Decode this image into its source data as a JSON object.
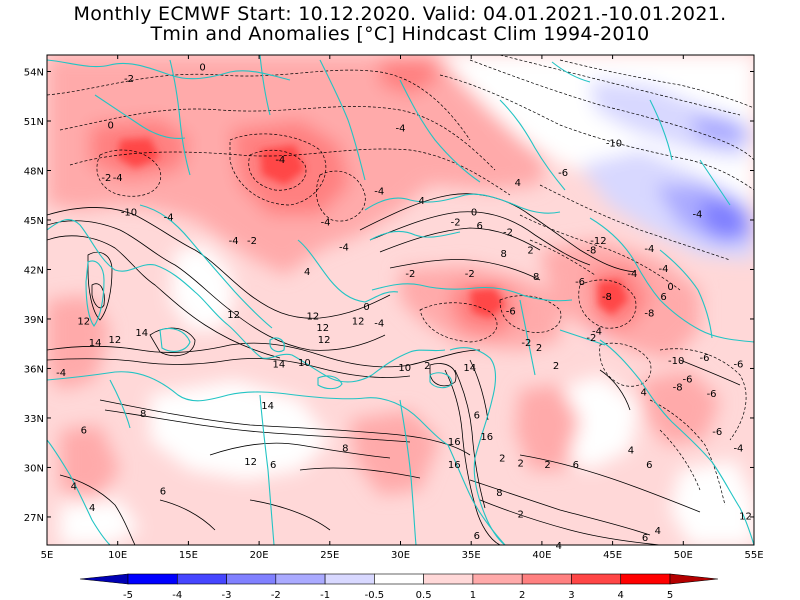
{
  "header": {
    "line1": "Monthly ECMWF Start: 10.12.2020. Valid: 04.01.2021.-10.01.2021.",
    "line2": "Tmin and Anomalies [°C] Hindcast Clim 1994-2010"
  },
  "map": {
    "lon_ticks": [
      "5E",
      "10E",
      "15E",
      "20E",
      "25E",
      "30E",
      "35E",
      "40E",
      "45E",
      "50E",
      "55E"
    ],
    "lat_ticks": [
      "54N",
      "51N",
      "48N",
      "45N",
      "42N",
      "39N",
      "36N",
      "33N",
      "30N",
      "27N"
    ],
    "colors": {
      "coastline": "#22c4c4",
      "contour": "#000000",
      "neutral": "#ffffff"
    }
  },
  "colorbar": {
    "labels": [
      "-5",
      "-4",
      "-3",
      "-2",
      "-1",
      "-0.5",
      "0.5",
      "1",
      "2",
      "3",
      "4",
      "5"
    ],
    "colors": [
      "#0000b4",
      "#0000ff",
      "#4646ff",
      "#8080ff",
      "#aaaaff",
      "#d8d8ff",
      "#ffffff",
      "#ffd8d8",
      "#ffaaaa",
      "#ff8080",
      "#ff4646",
      "#ff0000",
      "#b40000"
    ]
  },
  "contour_labels": [
    {
      "t": "0",
      "lon": 16,
      "lat": 54.3
    },
    {
      "t": "-2",
      "lon": 10.8,
      "lat": 53.6
    },
    {
      "t": "0",
      "lon": 9.5,
      "lat": 50.8
    },
    {
      "t": "-4",
      "lon": 10,
      "lat": 47.6
    },
    {
      "t": "-2",
      "lon": 9.2,
      "lat": 47.6
    },
    {
      "t": "-10",
      "lon": 10.8,
      "lat": 45.5
    },
    {
      "t": "-4",
      "lon": 13.6,
      "lat": 45.2
    },
    {
      "t": "-4",
      "lon": 18.2,
      "lat": 43.8
    },
    {
      "t": "-2",
      "lon": 19.5,
      "lat": 43.8
    },
    {
      "t": "-4",
      "lon": 24.7,
      "lat": 44.9
    },
    {
      "t": "-4",
      "lon": 26,
      "lat": 43.4
    },
    {
      "t": "-4",
      "lon": 21.5,
      "lat": 48.7
    },
    {
      "t": "-4",
      "lon": 30,
      "lat": 50.6
    },
    {
      "t": "-4",
      "lon": 28.5,
      "lat": 46.8
    },
    {
      "t": "4",
      "lon": 23.4,
      "lat": 41.9
    },
    {
      "t": "4",
      "lon": 31.5,
      "lat": 46.2
    },
    {
      "t": "4",
      "lon": 38.3,
      "lat": 47.3
    },
    {
      "t": "-2",
      "lon": 33.9,
      "lat": 44.9
    },
    {
      "t": "0",
      "lon": 35.2,
      "lat": 45.5
    },
    {
      "t": "6",
      "lon": 35.6,
      "lat": 44.7
    },
    {
      "t": "-2",
      "lon": 37.6,
      "lat": 44.3
    },
    {
      "t": "-6",
      "lon": 41.5,
      "lat": 47.9
    },
    {
      "t": "-10",
      "lon": 45.1,
      "lat": 49.7
    },
    {
      "t": "-12",
      "lon": 44,
      "lat": 43.8
    },
    {
      "t": "-8",
      "lon": 43.5,
      "lat": 43.2
    },
    {
      "t": "-4",
      "lon": 47.6,
      "lat": 43.3
    },
    {
      "t": "-4",
      "lon": 51,
      "lat": 45.4
    },
    {
      "t": "8",
      "lon": 37.3,
      "lat": 43
    },
    {
      "t": "2",
      "lon": 39.2,
      "lat": 43.2
    },
    {
      "t": "8",
      "lon": 39.6,
      "lat": 41.6
    },
    {
      "t": "-2",
      "lon": 30.7,
      "lat": 41.8
    },
    {
      "t": "-2",
      "lon": 34.9,
      "lat": 41.8
    },
    {
      "t": "-6",
      "lon": 42.7,
      "lat": 41.3
    },
    {
      "t": "-4",
      "lon": 46.4,
      "lat": 41.8
    },
    {
      "t": "-4",
      "lon": 48.6,
      "lat": 42.1
    },
    {
      "t": "0",
      "lon": 49.1,
      "lat": 41
    },
    {
      "t": "6",
      "lon": 48.6,
      "lat": 40.4
    },
    {
      "t": "-8",
      "lon": 44.6,
      "lat": 40.4
    },
    {
      "t": "-8",
      "lon": 47.6,
      "lat": 39.4
    },
    {
      "t": "-4",
      "lon": 43.9,
      "lat": 38.3
    },
    {
      "t": "-2",
      "lon": 43.5,
      "lat": 37.9
    },
    {
      "t": "-6",
      "lon": 37.8,
      "lat": 39.5
    },
    {
      "t": "-4",
      "lon": 28.5,
      "lat": 38.8
    },
    {
      "t": "0",
      "lon": 27.6,
      "lat": 39.8
    },
    {
      "t": "12",
      "lon": 18.2,
      "lat": 39.3
    },
    {
      "t": "12",
      "lon": 23.8,
      "lat": 39.2
    },
    {
      "t": "12",
      "lon": 24.5,
      "lat": 38.5
    },
    {
      "t": "12",
      "lon": 27,
      "lat": 38.9
    },
    {
      "t": "12",
      "lon": 24.6,
      "lat": 37.8
    },
    {
      "t": "12",
      "lon": 7.6,
      "lat": 38.9
    },
    {
      "t": "14",
      "lon": 8.4,
      "lat": 37.6
    },
    {
      "t": "12",
      "lon": 9.8,
      "lat": 37.8
    },
    {
      "t": "14",
      "lon": 11.7,
      "lat": 38.2
    },
    {
      "t": "14",
      "lon": 21.4,
      "lat": 36.3
    },
    {
      "t": "10",
      "lon": 23.2,
      "lat": 36.4
    },
    {
      "t": "10",
      "lon": 30.3,
      "lat": 36.1
    },
    {
      "t": "2",
      "lon": 31.9,
      "lat": 36.2
    },
    {
      "t": "14",
      "lon": 34.9,
      "lat": 36.1
    },
    {
      "t": "-2",
      "lon": 38.9,
      "lat": 37.6
    },
    {
      "t": "2",
      "lon": 39.8,
      "lat": 37.3
    },
    {
      "t": "2",
      "lon": 41,
      "lat": 36.2
    },
    {
      "t": "4",
      "lon": 47.2,
      "lat": 34.6
    },
    {
      "t": "-10",
      "lon": 49.5,
      "lat": 36.5
    },
    {
      "t": "-8",
      "lon": 49.6,
      "lat": 34.9
    },
    {
      "t": "-6",
      "lon": 50.3,
      "lat": 35.4
    },
    {
      "t": "-6",
      "lon": 52,
      "lat": 34.5
    },
    {
      "t": "-6",
      "lon": 51.5,
      "lat": 36.7
    },
    {
      "t": "-6",
      "lon": 53.9,
      "lat": 36.3
    },
    {
      "t": "-4",
      "lon": 53.9,
      "lat": 31.2
    },
    {
      "t": "-6",
      "lon": 52.4,
      "lat": 32.2
    },
    {
      "t": "-4",
      "lon": 6,
      "lat": 35.8
    },
    {
      "t": "6",
      "lon": 7.6,
      "lat": 32.3
    },
    {
      "t": "8",
      "lon": 11.8,
      "lat": 33.3
    },
    {
      "t": "14",
      "lon": 20.6,
      "lat": 33.8
    },
    {
      "t": "8",
      "lon": 26.1,
      "lat": 31.2
    },
    {
      "t": "12",
      "lon": 19.4,
      "lat": 30.4
    },
    {
      "t": "6",
      "lon": 21,
      "lat": 30.2
    },
    {
      "t": "16",
      "lon": 33.8,
      "lat": 31.6
    },
    {
      "t": "16",
      "lon": 36.1,
      "lat": 31.9
    },
    {
      "t": "16",
      "lon": 33.8,
      "lat": 30.2
    },
    {
      "t": "6",
      "lon": 35.4,
      "lat": 33.2
    },
    {
      "t": "2",
      "lon": 37.2,
      "lat": 30.6
    },
    {
      "t": "2",
      "lon": 38.5,
      "lat": 30.3
    },
    {
      "t": "2",
      "lon": 40.4,
      "lat": 30.2
    },
    {
      "t": "6",
      "lon": 42.4,
      "lat": 30.2
    },
    {
      "t": "4",
      "lon": 46.3,
      "lat": 31.1
    },
    {
      "t": "6",
      "lon": 47.6,
      "lat": 30.2
    },
    {
      "t": "4",
      "lon": 6.9,
      "lat": 28.9
    },
    {
      "t": "4",
      "lon": 8.2,
      "lat": 27.6
    },
    {
      "t": "6",
      "lon": 13.2,
      "lat": 28.6
    },
    {
      "t": "8",
      "lon": 37,
      "lat": 28.5
    },
    {
      "t": "2",
      "lon": 38.5,
      "lat": 27.2
    },
    {
      "t": "6",
      "lon": 35.4,
      "lat": 25.9
    },
    {
      "t": "4",
      "lon": 41.2,
      "lat": 25.3
    },
    {
      "t": "6",
      "lon": 47.3,
      "lat": 25.8
    },
    {
      "t": "4",
      "lon": 48.2,
      "lat": 26.2
    },
    {
      "t": "12",
      "lon": 54.4,
      "lat": 27.1
    }
  ]
}
